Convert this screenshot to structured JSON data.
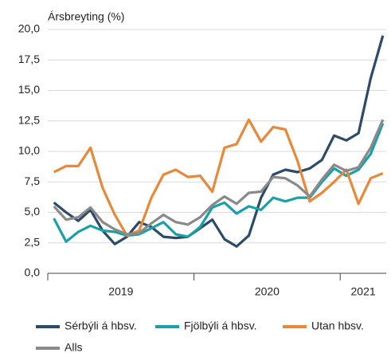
{
  "chart_data": {
    "type": "line",
    "title": "Ársbreyting (%)",
    "categories": [
      null,
      null,
      null,
      null,
      null,
      null,
      null,
      null,
      null,
      null,
      null,
      null,
      null,
      null,
      null,
      null,
      null,
      null,
      null,
      null,
      null,
      null,
      null,
      null,
      null,
      null,
      null,
      null
    ],
    "groups": [
      {
        "label": "2019",
        "count": 12
      },
      {
        "label": "2020",
        "count": 12
      },
      {
        "label": "2021",
        "count": 4
      }
    ],
    "ylim": [
      0,
      20
    ],
    "yticks": [
      {
        "value": 0,
        "label": "0,0"
      },
      {
        "value": 2.5,
        "label": "2,5"
      },
      {
        "value": 5,
        "label": "5,0"
      },
      {
        "value": 7.5,
        "label": "7,5"
      },
      {
        "value": 10,
        "label": "10,0"
      },
      {
        "value": 12.5,
        "label": "12,5"
      },
      {
        "value": 15,
        "label": "15,0"
      },
      {
        "value": 17.5,
        "label": "17,5"
      },
      {
        "value": 20,
        "label": "20,0"
      }
    ],
    "grid": true,
    "series": [
      {
        "name": "Sérbýli á hbsv.",
        "color": "#2c4a6a",
        "values": [
          5.8,
          5.0,
          4.3,
          5.2,
          3.5,
          2.4,
          3.0,
          4.2,
          3.8,
          3.0,
          2.9,
          3.0,
          3.7,
          4.4,
          2.8,
          2.2,
          3.1,
          6.2,
          8.1,
          8.5,
          8.3,
          8.6,
          9.3,
          11.3,
          10.9,
          11.5,
          16.0,
          19.5
        ]
      },
      {
        "name": "Fjölbýli á hbsv.",
        "color": "#1aa0a8",
        "values": [
          4.5,
          2.6,
          3.4,
          3.9,
          3.5,
          3.4,
          3.1,
          3.2,
          3.7,
          4.2,
          3.2,
          3.0,
          3.8,
          5.4,
          5.8,
          4.9,
          5.5,
          5.2,
          6.2,
          5.9,
          6.2,
          6.2,
          7.5,
          8.6,
          8.0,
          8.5,
          9.8,
          12.3
        ]
      },
      {
        "name": "Utan hbsv.",
        "color": "#e8883a",
        "values": [
          8.3,
          8.8,
          8.8,
          10.3,
          7.0,
          4.8,
          3.1,
          3.5,
          6.2,
          8.1,
          8.5,
          7.9,
          8.0,
          6.7,
          10.3,
          10.6,
          12.6,
          10.8,
          12.0,
          11.8,
          9.2,
          5.9,
          6.6,
          7.5,
          8.5,
          5.7,
          7.8,
          8.2
        ]
      },
      {
        "name": "Alls",
        "color": "#8a8a8a",
        "values": [
          5.5,
          4.4,
          4.6,
          5.4,
          4.2,
          3.6,
          3.2,
          3.3,
          4.1,
          4.8,
          4.2,
          4.0,
          4.6,
          5.6,
          6.3,
          5.7,
          6.6,
          6.7,
          7.9,
          7.8,
          7.2,
          6.3,
          7.7,
          8.9,
          8.4,
          8.7,
          10.3,
          12.6
        ]
      }
    ]
  }
}
